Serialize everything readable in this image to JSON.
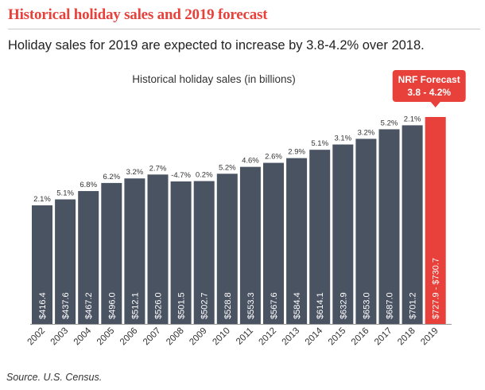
{
  "header": {
    "title": "Historical holiday sales and 2019 forecast",
    "subtitle": "Holiday sales for 2019 are expected to increase by 3.8-4.2% over 2018."
  },
  "footer": {
    "source": "Source. U.S. Census."
  },
  "colors": {
    "accent": "#e8403a",
    "bar": "#4a5362",
    "forecast": "#e8403a",
    "label": "#ffffff",
    "text": "#333333"
  },
  "chart_data": {
    "type": "bar",
    "title": "Historical holiday sales (in billions)",
    "xlabel": "",
    "ylabel": "",
    "ylim": [
      0,
      730.7
    ],
    "grid": false,
    "categories": [
      "2002",
      "2003",
      "2004",
      "2005",
      "2006",
      "2007",
      "2008",
      "2009",
      "2010",
      "2011",
      "2012",
      "2013",
      "2014",
      "2015",
      "2016",
      "2017",
      "2018",
      "2019"
    ],
    "values": [
      416.4,
      437.6,
      467.2,
      496.0,
      512.1,
      526.0,
      501.5,
      502.7,
      528.8,
      553.3,
      567.6,
      584.4,
      614.1,
      632.9,
      653.0,
      687.0,
      701.2,
      730.7
    ],
    "value_labels": [
      "$416.4",
      "$437.6",
      "$467.2",
      "$496.0",
      "$512.1",
      "$526.0",
      "$501.5",
      "$502.7",
      "$528.8",
      "$553.3",
      "$567.6",
      "$584.4",
      "$614.1",
      "$632.9",
      "$653.0",
      "$687.0",
      "$701.2",
      "$727.9 - $730.7"
    ],
    "growth_labels": [
      "2.1%",
      "5.1%",
      "6.8%",
      "6.2%",
      "3.2%",
      "2.7%",
      "-4.7%",
      "0.2%",
      "5.2%",
      "4.6%",
      "2.6%",
      "2.9%",
      "5.1%",
      "3.1%",
      "3.2%",
      "5.2%",
      "2.1%",
      ""
    ],
    "forecast": {
      "category": "2019",
      "low": 727.9,
      "high": 730.7,
      "badge_title": "NRF Forecast",
      "badge_range": "3.8 - 4.2%"
    }
  }
}
